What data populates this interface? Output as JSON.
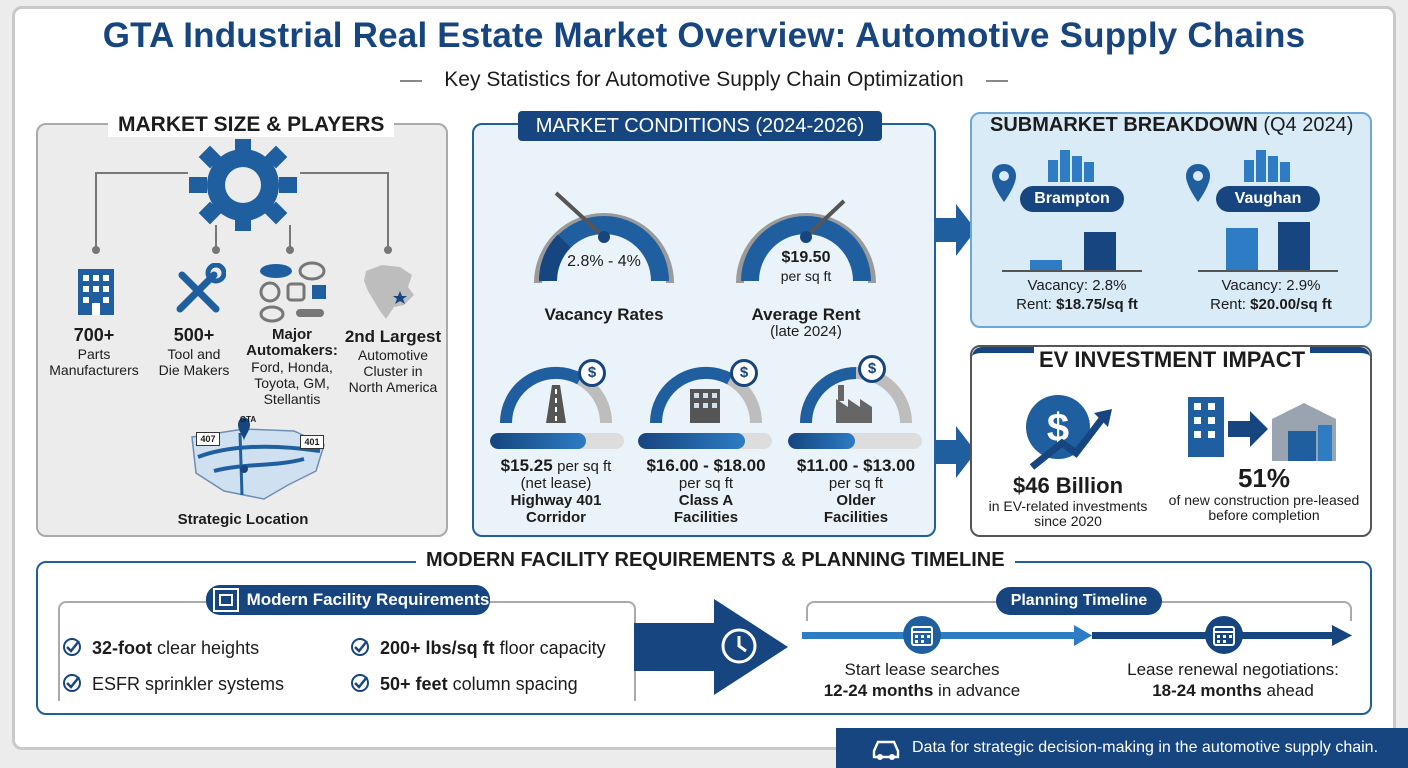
{
  "title": "GTA Industrial Real Estate Market Overview: Automotive Supply Chains",
  "subtitle": "Key Statistics for Automotive Supply Chain Optimization",
  "market": {
    "heading": "MARKET SIZE & PLAYERS",
    "stats": [
      {
        "big": "700+",
        "line1": "Parts",
        "line2": "Manufacturers"
      },
      {
        "big": "500+",
        "line1": "Tool and",
        "line2": "Die Makers"
      },
      {
        "big": "Major",
        "line1": "Automakers:",
        "line2": "Ford, Honda,",
        "line3": "Toyota, GM,",
        "line4": "Stellantis"
      },
      {
        "big": "2nd Largest",
        "line1": "Automotive",
        "line2": "Cluster in",
        "line3": "North America"
      }
    ],
    "map_labels": {
      "gta": "GTA",
      "hwy407": "407",
      "hwy401": "401"
    },
    "location_label": "Strategic Location"
  },
  "conditions": {
    "heading": "MARKET CONDITIONS (2024-2026)",
    "vacancy": {
      "value": "2.8% - 4%",
      "label": "Vacancy Rates"
    },
    "rent": {
      "value": "$19.50",
      "unit": "per sq ft",
      "label": "Average Rent",
      "note": "(late 2024)"
    },
    "segments": [
      {
        "price": "$15.25",
        "unit": "per sq ft",
        "note": "(net lease)",
        "name1": "Highway 401",
        "name2": "Corridor",
        "fill": 0.72
      },
      {
        "price": "$16.00 - $18.00",
        "unit": "per sq ft",
        "note": "",
        "name1": "Class A",
        "name2": "Facilities",
        "fill": 0.8
      },
      {
        "price": "$11.00 - $13.00",
        "unit": "per sq ft",
        "note": "",
        "name1": "Older",
        "name2": "Facilities",
        "fill": 0.5
      }
    ],
    "dollar_symbol": "$"
  },
  "submarket": {
    "heading": "SUBMARKET BREAKDOWN",
    "period": "(Q4 2024)",
    "areas": [
      {
        "name": "Brampton",
        "vacancy": "Vacancy: 2.8%",
        "rent_label": "Rent:",
        "rent_value": "$18.75/sq ft"
      },
      {
        "name": "Vaughan",
        "vacancy": "Vacancy: 2.9%",
        "rent_label": "Rent:",
        "rent_value": "$20.00/sq ft"
      }
    ]
  },
  "ev": {
    "heading": "EV INVESTMENT IMPACT",
    "invest_value": "$46 Billion",
    "invest_line1": "in EV-related investments",
    "invest_line2": "since 2020",
    "preleased_value": "51%",
    "preleased_line1": "of new construction pre-leased",
    "preleased_line2": "before completion"
  },
  "bottom": {
    "heading": "MODERN FACILITY REQUIREMENTS & PLANNING TIMELINE",
    "req_title": "Modern Facility Requirements",
    "requirements": [
      {
        "bold": "32-foot",
        "rest": " clear heights"
      },
      {
        "bold": "",
        "rest": "ESFR sprinkler systems"
      },
      {
        "bold": "200+ lbs/sq ft",
        "rest": " floor capacity"
      },
      {
        "bold": "50+ feet",
        "rest": " column spacing"
      }
    ],
    "timeline_title": "Planning Timeline",
    "steps": [
      {
        "line1": "Start lease searches",
        "bold": "12-24 months",
        "rest": " in advance"
      },
      {
        "line1": "Lease renewal negotiations:",
        "bold": "18-24 months",
        "rest": " ahead"
      }
    ]
  },
  "footer": "Data for strategic decision-making in the automotive supply chain.",
  "colors": {
    "navy": "#17457f",
    "blue": "#1f5fa0",
    "light_blue": "#2d7cc4",
    "panel_blue": "#d9ebf7"
  }
}
